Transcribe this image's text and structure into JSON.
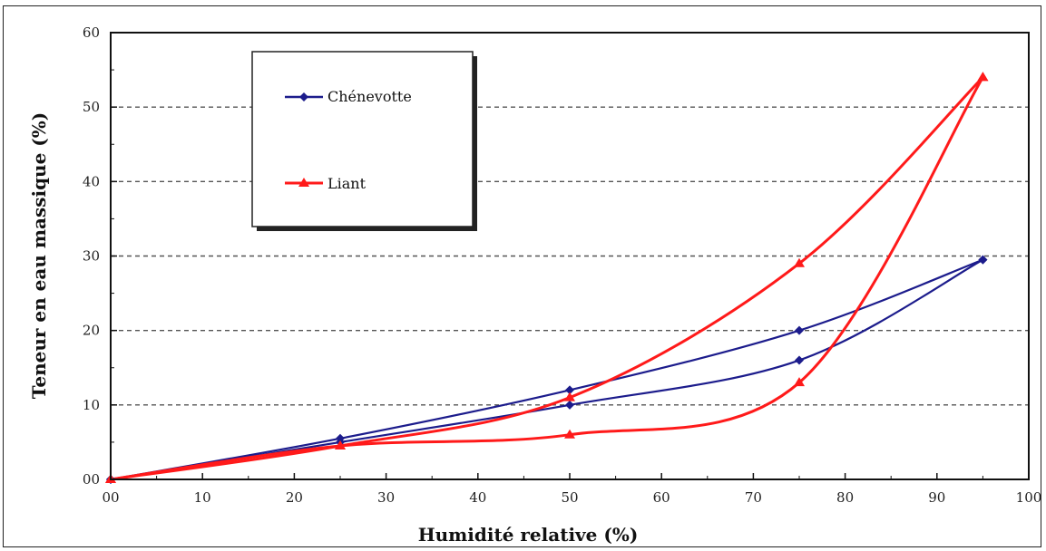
{
  "chart_data": {
    "type": "line",
    "xlabel": "Humidité relative (%)",
    "ylabel": "Teneur en eau massique (%)",
    "xlim": [
      0,
      100
    ],
    "ylim": [
      0,
      60
    ],
    "x_ticks": [
      "00",
      "10",
      "20",
      "30",
      "40",
      "50",
      "60",
      "70",
      "80",
      "90",
      "100"
    ],
    "y_ticks": [
      "00",
      "10",
      "20",
      "30",
      "40",
      "50",
      "60"
    ],
    "grid": "horizontal dashed",
    "legend_position": "top-left",
    "series": [
      {
        "name": "Chénevotte",
        "color": "#1c1c8c",
        "marker": "diamond",
        "adsorption": [
          [
            0,
            0
          ],
          [
            25,
            5
          ],
          [
            50,
            10
          ],
          [
            75,
            16
          ],
          [
            95,
            29.5
          ]
        ],
        "desorption": [
          [
            95,
            29.5
          ],
          [
            75,
            20
          ],
          [
            50,
            12
          ],
          [
            25,
            5.5
          ],
          [
            0,
            0
          ]
        ]
      },
      {
        "name": "Liant",
        "color": "#ff1a1a",
        "marker": "triangle",
        "adsorption": [
          [
            0,
            0
          ],
          [
            25,
            4.5
          ],
          [
            50,
            6
          ],
          [
            75,
            13
          ],
          [
            95,
            54
          ]
        ],
        "desorption": [
          [
            95,
            54
          ],
          [
            75,
            29
          ],
          [
            50,
            11
          ],
          [
            25,
            4.5
          ],
          [
            0,
            0
          ]
        ]
      }
    ]
  }
}
